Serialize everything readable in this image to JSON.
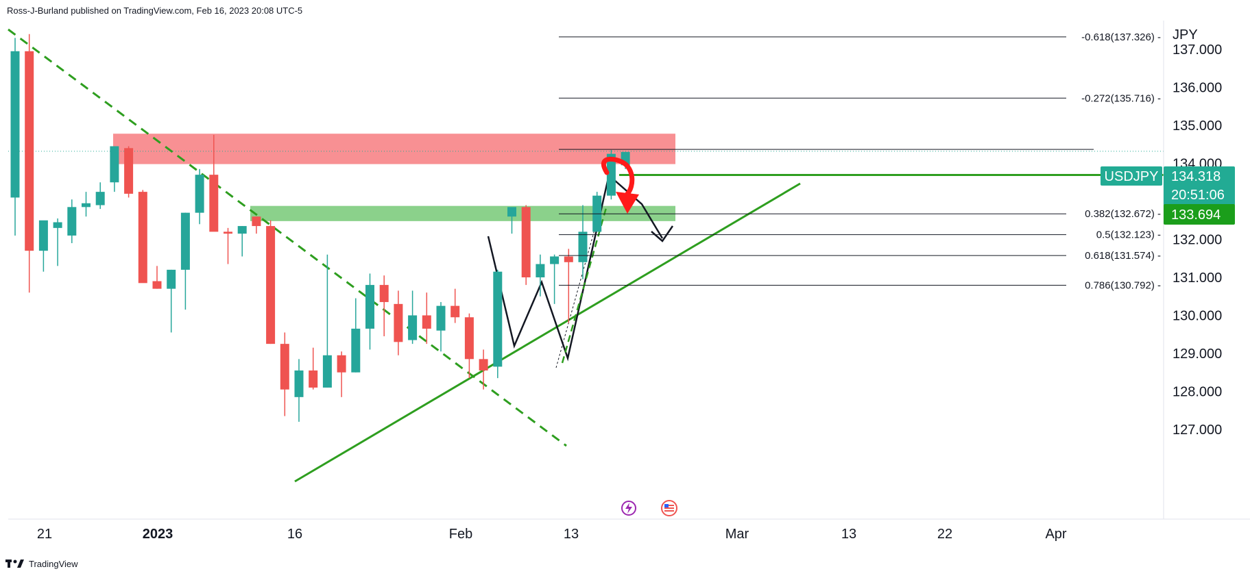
{
  "header": {
    "publisher": "Ross-J-Burland published on TradingView.com, Feb 16, 2023 20:08 UTC-5"
  },
  "footer": {
    "brand": "TradingView"
  },
  "colors": {
    "up": "#26a69a",
    "down": "#ef5350",
    "green_line": "#2e9e1f",
    "resistance_zone": "#f77c80",
    "support_zone": "#64c264",
    "tag_green": "#22ab94",
    "tag_green2": "#1b9e1b"
  },
  "chart_data": {
    "type": "candlestick",
    "symbol": "USDJPY",
    "currency": "JPY",
    "y_ticks": [
      137,
      136,
      135,
      134,
      133,
      132,
      131,
      130,
      129,
      128,
      127
    ],
    "y_tick_labels": [
      "137.000",
      "136.000",
      "135.000",
      "134.000",
      "133.000",
      "132.000",
      "131.000",
      "130.000",
      "129.000",
      "128.000",
      "127.000"
    ],
    "ylim": [
      126.6,
      137.9
    ],
    "x_ticks": [
      "21",
      "2023",
      "16",
      "Feb",
      "13",
      "Mar",
      "13",
      "22",
      "Apr"
    ],
    "candles": [
      {
        "o": 133.1,
        "h": 137.3,
        "l": 132.1,
        "c": 136.95
      },
      {
        "o": 136.95,
        "h": 137.4,
        "l": 130.6,
        "c": 131.7
      },
      {
        "o": 131.7,
        "h": 132.4,
        "l": 131.15,
        "c": 132.5
      },
      {
        "o": 132.3,
        "h": 132.55,
        "l": 131.3,
        "c": 132.45
      },
      {
        "o": 132.1,
        "h": 133.05,
        "l": 131.9,
        "c": 132.85
      },
      {
        "o": 132.85,
        "h": 133.25,
        "l": 132.6,
        "c": 132.95
      },
      {
        "o": 132.9,
        "h": 133.5,
        "l": 132.8,
        "c": 133.25
      },
      {
        "o": 133.5,
        "h": 134.4,
        "l": 133.25,
        "c": 134.45
      },
      {
        "o": 134.4,
        "h": 134.45,
        "l": 133.1,
        "c": 133.2
      },
      {
        "o": 133.25,
        "h": 133.3,
        "l": 130.9,
        "c": 130.85
      },
      {
        "o": 130.9,
        "h": 131.3,
        "l": 130.7,
        "c": 130.7
      },
      {
        "o": 130.7,
        "h": 131.2,
        "l": 129.55,
        "c": 131.2
      },
      {
        "o": 131.2,
        "h": 132.7,
        "l": 130.15,
        "c": 132.7
      },
      {
        "o": 132.7,
        "h": 133.85,
        "l": 132.4,
        "c": 133.7
      },
      {
        "o": 133.7,
        "h": 134.75,
        "l": 132.3,
        "c": 132.2
      },
      {
        "o": 132.2,
        "h": 132.3,
        "l": 131.35,
        "c": 132.15
      },
      {
        "o": 132.15,
        "h": 132.35,
        "l": 131.55,
        "c": 132.35
      },
      {
        "o": 132.6,
        "h": 132.6,
        "l": 132.15,
        "c": 132.35
      },
      {
        "o": 132.35,
        "h": 132.5,
        "l": 129.25,
        "c": 129.25
      },
      {
        "o": 129.25,
        "h": 129.55,
        "l": 127.35,
        "c": 128.05
      },
      {
        "o": 127.85,
        "h": 128.85,
        "l": 127.2,
        "c": 128.55
      },
      {
        "o": 128.55,
        "h": 129.15,
        "l": 128.05,
        "c": 128.1
      },
      {
        "o": 128.1,
        "h": 131.6,
        "l": 128.1,
        "c": 128.95
      },
      {
        "o": 128.95,
        "h": 129.05,
        "l": 127.85,
        "c": 128.5
      },
      {
        "o": 128.5,
        "h": 130.45,
        "l": 128.5,
        "c": 129.65
      },
      {
        "o": 129.65,
        "h": 131.1,
        "l": 129.1,
        "c": 130.8
      },
      {
        "o": 130.8,
        "h": 131.05,
        "l": 129.45,
        "c": 130.35
      },
      {
        "o": 130.3,
        "h": 130.65,
        "l": 128.95,
        "c": 129.3
      },
      {
        "o": 129.35,
        "h": 130.65,
        "l": 129.25,
        "c": 130.0
      },
      {
        "o": 130.0,
        "h": 130.6,
        "l": 129.25,
        "c": 129.65
      },
      {
        "o": 129.6,
        "h": 130.35,
        "l": 129.05,
        "c": 130.25
      },
      {
        "o": 130.25,
        "h": 130.7,
        "l": 129.8,
        "c": 129.95
      },
      {
        "o": 129.95,
        "h": 130.05,
        "l": 128.35,
        "c": 128.85
      },
      {
        "o": 128.85,
        "h": 129.1,
        "l": 128.05,
        "c": 128.55
      },
      {
        "o": 128.65,
        "h": 131.2,
        "l": 128.35,
        "c": 131.15
      },
      {
        "o": 132.6,
        "h": 132.8,
        "l": 132.15,
        "c": 132.85
      },
      {
        "o": 132.85,
        "h": 132.9,
        "l": 130.8,
        "c": 131.0
      },
      {
        "o": 131.0,
        "h": 131.6,
        "l": 130.5,
        "c": 131.35
      },
      {
        "o": 131.35,
        "h": 131.6,
        "l": 130.3,
        "c": 131.55
      },
      {
        "o": 131.55,
        "h": 131.75,
        "l": 129.8,
        "c": 131.4
      },
      {
        "o": 131.4,
        "h": 132.9,
        "l": 130.95,
        "c": 132.2
      },
      {
        "o": 132.2,
        "h": 133.25,
        "l": 132.25,
        "c": 133.15
      },
      {
        "o": 133.15,
        "h": 134.35,
        "l": 133.05,
        "c": 134.25
      },
      {
        "o": 133.95,
        "h": 134.3,
        "l": 133.85,
        "c": 134.3
      }
    ],
    "resistance_zone": [
      133.98,
      134.78
    ],
    "support_zone": [
      132.48,
      132.88
    ],
    "fib_levels": [
      {
        "label": "-0.618(137.326)",
        "value": 137.326
      },
      {
        "label": "-0.272(135.716)",
        "value": 135.716
      },
      {
        "label": "0.382(132.672)",
        "value": 132.672
      },
      {
        "label": "0.5(132.123)",
        "value": 132.123
      },
      {
        "label": "0.618(131.574)",
        "value": 131.574
      },
      {
        "label": "0.786(130.792)",
        "value": 130.792
      }
    ],
    "fib_anchor": 134.35,
    "horizontal_level": 133.694,
    "last_price": 134.318,
    "tags": {
      "symbol": "USDJPY",
      "price": "134.318",
      "countdown": "20:51:06",
      "level": "133.694"
    }
  }
}
